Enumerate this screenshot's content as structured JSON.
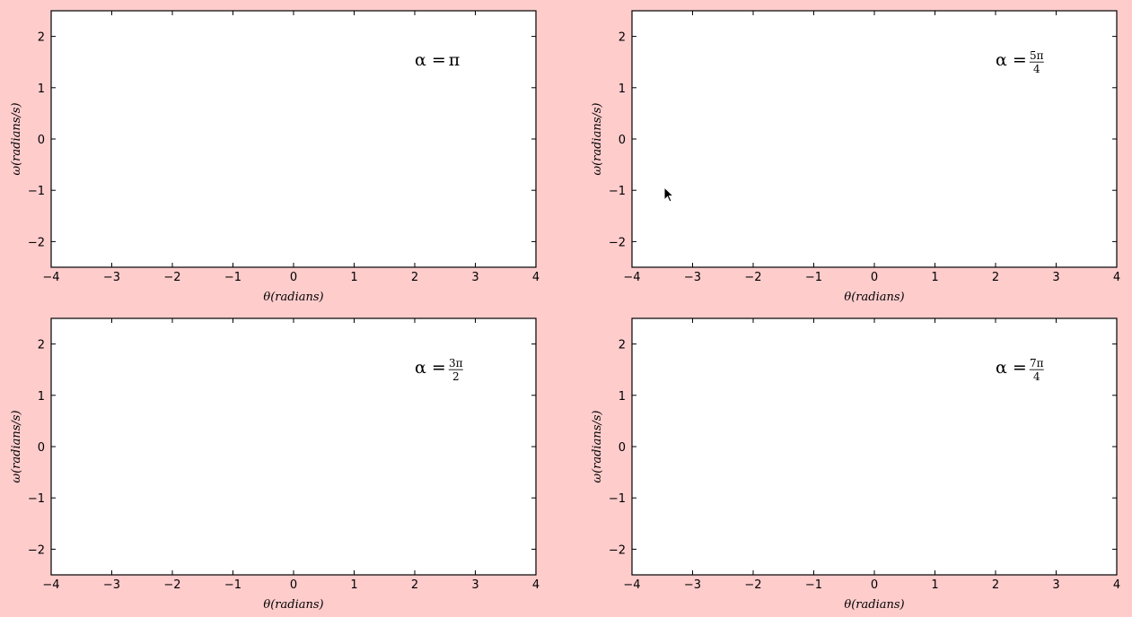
{
  "figure": {
    "background": "#ffcccc",
    "plot_background": "#ffffff"
  },
  "chart_data": [
    {
      "type": "line",
      "series": [],
      "xlabel": "θ(radians)",
      "ylabel": "ω(radians/s)",
      "xlim": [
        -4,
        4
      ],
      "ylim": [
        -2.5,
        2.5
      ],
      "xticks": [
        -4,
        -3,
        -2,
        -1,
        0,
        1,
        2,
        3,
        4
      ],
      "yticks": [
        -2,
        -1,
        0,
        1,
        2
      ],
      "annotation": {
        "prefix": "α =",
        "main": "π"
      }
    },
    {
      "type": "line",
      "series": [],
      "xlabel": "θ(radians)",
      "ylabel": "ω(radians/s)",
      "xlim": [
        -4,
        4
      ],
      "ylim": [
        -2.5,
        2.5
      ],
      "xticks": [
        -4,
        -3,
        -2,
        -1,
        0,
        1,
        2,
        3,
        4
      ],
      "yticks": [
        -2,
        -1,
        0,
        1,
        2
      ],
      "annotation": {
        "prefix": "α =",
        "numerator": "5π",
        "denominator": "4"
      }
    },
    {
      "type": "line",
      "series": [],
      "xlabel": "θ(radians)",
      "ylabel": "ω(radians/s)",
      "xlim": [
        -4,
        4
      ],
      "ylim": [
        -2.5,
        2.5
      ],
      "xticks": [
        -4,
        -3,
        -2,
        -1,
        0,
        1,
        2,
        3,
        4
      ],
      "yticks": [
        -2,
        -1,
        0,
        1,
        2
      ],
      "annotation": {
        "prefix": "α =",
        "numerator": "3π",
        "denominator": "2"
      }
    },
    {
      "type": "line",
      "series": [],
      "xlabel": "θ(radians)",
      "ylabel": "ω(radians/s)",
      "xlim": [
        -4,
        4
      ],
      "ylim": [
        -2.5,
        2.5
      ],
      "xticks": [
        -4,
        -3,
        -2,
        -1,
        0,
        1,
        2,
        3,
        4
      ],
      "yticks": [
        -2,
        -1,
        0,
        1,
        2
      ],
      "annotation": {
        "prefix": "α =",
        "numerator": "7π",
        "denominator": "4"
      }
    }
  ]
}
